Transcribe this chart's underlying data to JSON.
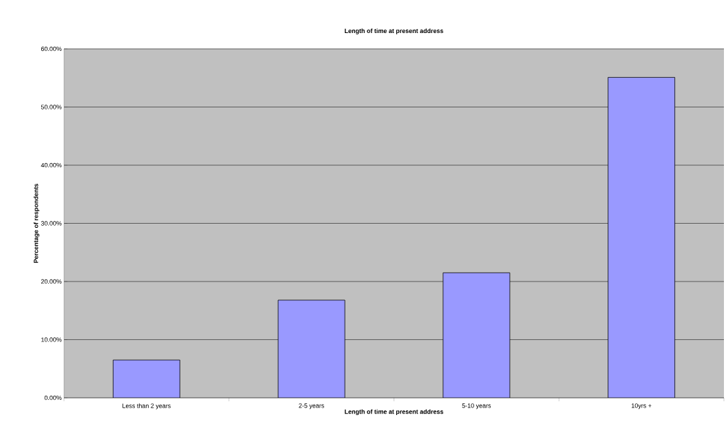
{
  "chart_data": {
    "type": "bar",
    "title": "Length of time at present address",
    "xlabel": "Length of time at present address",
    "ylabel": "Percentage of respondents",
    "categories": [
      "Less than 2 years",
      "2-5 years",
      "5-10 years",
      "10yrs +"
    ],
    "values": [
      6.5,
      16.8,
      21.5,
      55.1
    ],
    "color": "#9999ff",
    "ylim": [
      0,
      60
    ],
    "yticks": [
      {
        "value": 0,
        "label": "0.00%"
      },
      {
        "value": 10,
        "label": "10.00%"
      },
      {
        "value": 20,
        "label": "20.00%"
      },
      {
        "value": 30,
        "label": "30.00%"
      },
      {
        "value": 40,
        "label": "40.00%"
      },
      {
        "value": 50,
        "label": "50.00%"
      },
      {
        "value": 60,
        "label": "60.00%"
      }
    ],
    "grid": "y"
  }
}
